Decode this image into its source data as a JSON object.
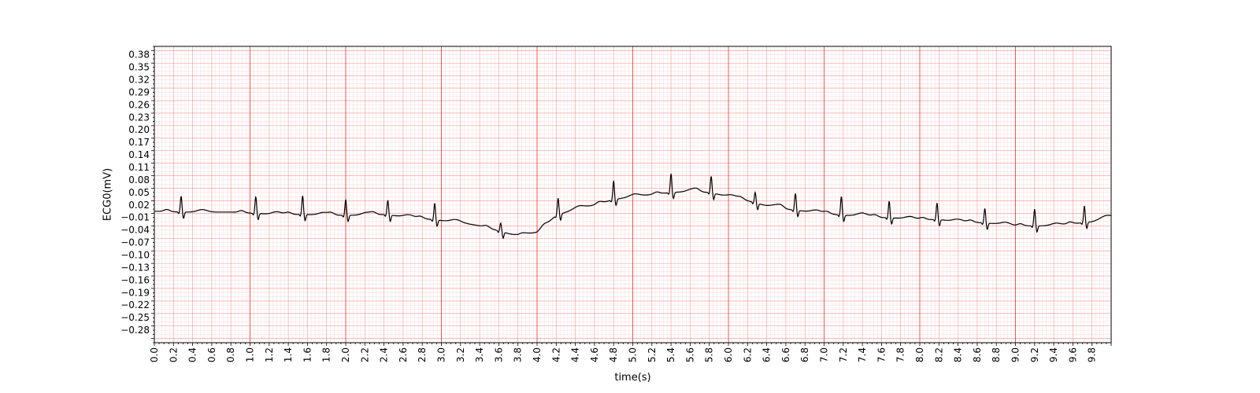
{
  "chart_data": {
    "type": "line",
    "xlabel": "time(s)",
    "ylabel": "ECG0(mV)",
    "xlim": [
      0,
      10
    ],
    "ylim": [
      -0.31,
      0.4
    ],
    "x_ticks": [
      "0.0",
      "0.2",
      "0.4",
      "0.6",
      "0.8",
      "1.0",
      "1.2",
      "1.4",
      "1.6",
      "1.8",
      "2.0",
      "2.2",
      "2.4",
      "2.6",
      "2.8",
      "3.0",
      "3.2",
      "3.4",
      "3.6",
      "3.8",
      "4.0",
      "4.2",
      "4.4",
      "4.6",
      "4.8",
      "5.0",
      "5.2",
      "5.4",
      "5.6",
      "5.8",
      "6.0",
      "6.2",
      "6.4",
      "6.6",
      "6.8",
      "7.0",
      "7.2",
      "7.4",
      "7.6",
      "7.8",
      "8.0",
      "8.2",
      "8.4",
      "8.6",
      "8.8",
      "9.0",
      "9.2",
      "9.4",
      "9.6",
      "9.8"
    ],
    "y_ticks": [
      "0.38",
      "0.35",
      "0.32",
      "0.29",
      "0.26",
      "0.23",
      "0.20",
      "0.17",
      "0.14",
      "0.11",
      "0.08",
      "0.05",
      "0.02",
      "−0.01",
      "−0.04",
      "−0.07",
      "−0.10",
      "−0.13",
      "−0.16",
      "−0.19",
      "−0.22",
      "−0.25",
      "−0.28"
    ],
    "grid": {
      "major": true,
      "minor": true,
      "color": "#ff0000"
    },
    "line_color": "#000000",
    "baseline": {
      "x": [
        0.0,
        0.3,
        0.8,
        1.2,
        1.6,
        2.0,
        2.4,
        2.9,
        3.2,
        3.4,
        3.6,
        3.8,
        4.0,
        4.2,
        4.4,
        4.6,
        4.8,
        5.0,
        5.2,
        5.4,
        5.6,
        5.8,
        6.0,
        6.2,
        6.4,
        6.6,
        6.8,
        7.0,
        7.2,
        7.4,
        7.6,
        7.8,
        8.0,
        8.2,
        8.4,
        8.6,
        8.8,
        9.0,
        9.2,
        9.4,
        9.6,
        9.8,
        10.0
      ],
      "y": [
        0.005,
        0.003,
        0.003,
        -0.002,
        -0.003,
        -0.005,
        -0.003,
        -0.015,
        -0.022,
        -0.03,
        -0.042,
        -0.055,
        -0.045,
        -0.005,
        0.01,
        0.02,
        0.033,
        0.04,
        0.045,
        0.05,
        0.052,
        0.05,
        0.04,
        0.03,
        0.018,
        0.01,
        0.005,
        0.0,
        -0.005,
        -0.005,
        -0.01,
        -0.012,
        -0.015,
        -0.015,
        -0.02,
        -0.022,
        -0.025,
        -0.03,
        -0.03,
        -0.03,
        -0.025,
        -0.02,
        -0.008
      ]
    },
    "r_peaks": {
      "t": [
        0.28,
        1.06,
        1.55,
        2.0,
        2.44,
        2.93,
        3.62,
        4.22,
        4.8,
        5.4,
        5.82,
        6.28,
        6.7,
        7.18,
        7.68,
        8.18,
        8.68,
        9.2,
        9.72
      ],
      "amplitude": [
        0.038,
        0.04,
        0.045,
        0.038,
        0.035,
        0.04,
        0.02,
        0.04,
        0.045,
        0.045,
        0.04,
        0.025,
        0.04,
        0.045,
        0.04,
        0.04,
        0.035,
        0.04,
        0.04
      ]
    }
  }
}
